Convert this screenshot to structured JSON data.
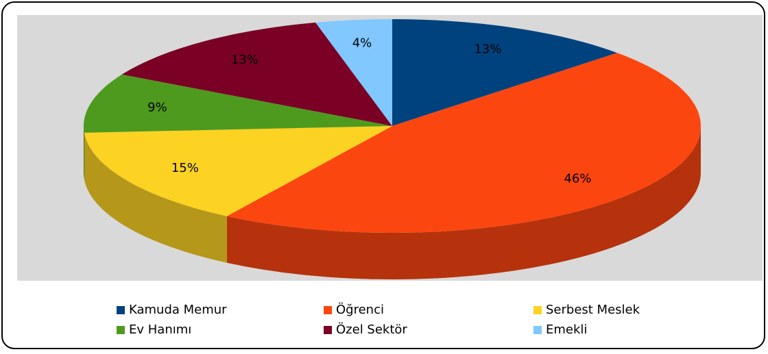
{
  "chart_data": {
    "type": "pie",
    "categories": [
      "Kamuda Memur",
      "Öğrenci",
      "Serbest Meslek",
      "Ev Hanımı",
      "Özel Sektör",
      "Emekli"
    ],
    "values": [
      13,
      46,
      15,
      9,
      13,
      4
    ],
    "value_labels": [
      "13%",
      "46%",
      "15%",
      "9%",
      "13%",
      "4%"
    ],
    "colors": [
      "#00427e",
      "#fc4610",
      "#fcd223",
      "#4e9a1e",
      "#7a0026",
      "#80c8ff"
    ],
    "legend": "bottom"
  }
}
